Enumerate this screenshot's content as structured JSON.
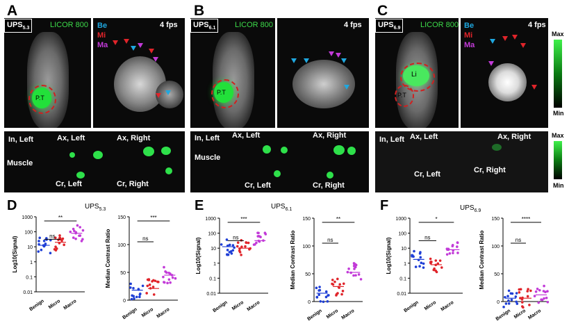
{
  "panels": {
    "A": {
      "letter": "A",
      "strain": "UPS",
      "sub": "5.3",
      "licor": "LICOR 800",
      "fps": "4 fps"
    },
    "B": {
      "letter": "B",
      "strain": "UPS",
      "sub": "6.1",
      "licor": "LICOR 800",
      "fps": "4 fps"
    },
    "C": {
      "letter": "C",
      "strain": "UPS",
      "sub": "6.9",
      "licor": "LICOR 800",
      "fps": "4 fps"
    }
  },
  "legend": {
    "be": "Be",
    "mi": "Mi",
    "ma": "Ma"
  },
  "colorbar": {
    "max": "Max",
    "min": "Min"
  },
  "tissue_labels": {
    "pt": "P.T",
    "li": "Li",
    "in_left": "In, Left",
    "ax_left": "Ax, Left",
    "ax_right": "Ax, Right",
    "cr_left": "Cr, Left",
    "cr_right": "Cr, Right",
    "muscle": "Muscle"
  },
  "charts": {
    "D": {
      "letter": "D",
      "title": "UPS",
      "sub": "5.3"
    },
    "E": {
      "letter": "E",
      "title": "UPS",
      "sub": "6.1"
    },
    "F": {
      "letter": "F",
      "title": "UPS",
      "sub": "6.9"
    }
  },
  "axis": {
    "signal_ylabel": "Log10(Signal)",
    "ratio_ylabel": "Median Contrast Ratio",
    "categories": [
      "Benign",
      "Micro",
      "Macro"
    ],
    "log_ticks": [
      "1000",
      "100",
      "10",
      "1",
      "0.1",
      "0.01"
    ],
    "ratio_ticks": [
      "150",
      "100",
      "50",
      "0"
    ]
  },
  "signif": {
    "D_signal_top": "**",
    "D_signal_low": "ns",
    "D_ratio_top": "***",
    "D_ratio_low": "ns",
    "E_signal_top": "***",
    "E_signal_low": "ns",
    "E_ratio_top": "**",
    "E_ratio_low": "ns",
    "F_signal_top": "*",
    "F_signal_low": "ns",
    "F_ratio_top": "****",
    "F_ratio_low": "ns"
  },
  "colors": {
    "benign": "#1f3fd6",
    "micro": "#e0242a",
    "macro": "#c23ad8",
    "licor": "#3ddc4a"
  }
}
